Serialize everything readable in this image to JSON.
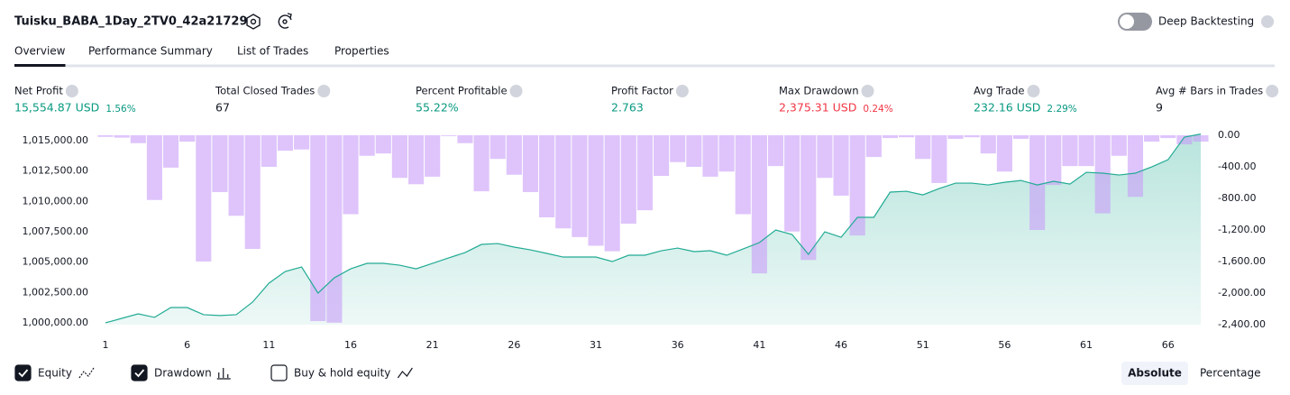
{
  "header": {
    "title": "Tuisku_BABA_1Day_2TV0_42a21729",
    "toggle_label": "Deep Backtesting",
    "toggle_on": false
  },
  "tabs": [
    {
      "label": "Overview",
      "active": true
    },
    {
      "label": "Performance Summary",
      "active": false
    },
    {
      "label": "List of Trades",
      "active": false
    },
    {
      "label": "Properties",
      "active": false
    }
  ],
  "metrics": [
    {
      "label": "Net Profit",
      "value": "15,554.87 USD",
      "change": "1.56%",
      "tone": "positive"
    },
    {
      "label": "Total Closed Trades",
      "value": "67",
      "tone": "neutral"
    },
    {
      "label": "Percent Profitable",
      "value": "55.22%",
      "tone": "positive"
    },
    {
      "label": "Profit Factor",
      "value": "2.763",
      "tone": "positive"
    },
    {
      "label": "Max Drawdown",
      "value": "2,375.31 USD",
      "change": "0.24%",
      "tone": "negative"
    },
    {
      "label": "Avg Trade",
      "value": "232.16 USD",
      "change": "2.29%",
      "tone": "positive"
    },
    {
      "label": "Avg # Bars in Trades",
      "value": "9",
      "tone": "neutral"
    }
  ],
  "chart_data": {
    "type": "equity-drawdown",
    "x": [
      1,
      2,
      3,
      4,
      5,
      6,
      7,
      8,
      9,
      10,
      11,
      12,
      13,
      14,
      15,
      16,
      17,
      18,
      19,
      20,
      21,
      22,
      23,
      24,
      25,
      26,
      27,
      28,
      29,
      30,
      31,
      32,
      33,
      34,
      35,
      36,
      37,
      38,
      39,
      40,
      41,
      42,
      43,
      44,
      45,
      46,
      47,
      48,
      49,
      50,
      51,
      52,
      53,
      54,
      55,
      56,
      57,
      58,
      59,
      60,
      61,
      62,
      63,
      64,
      65,
      66,
      67,
      68
    ],
    "xlim": [
      1,
      68
    ],
    "xticks": [
      1,
      6,
      11,
      16,
      21,
      26,
      31,
      36,
      41,
      46,
      51,
      56,
      61,
      66
    ],
    "ylim": [
      999850,
      1015600
    ],
    "yticks": [
      {
        "value": 1000000,
        "label": "1,000,000.00"
      },
      {
        "value": 1002500,
        "label": "1,002,500.00"
      },
      {
        "value": 1005000,
        "label": "1,005,000.00"
      },
      {
        "value": 1007500,
        "label": "1,007,500.00"
      },
      {
        "value": 1010000,
        "label": "1,010,000.00"
      },
      {
        "value": 1012500,
        "label": "1,012,500.00"
      },
      {
        "value": 1015000,
        "label": "1,015,000.00"
      }
    ],
    "y2lim": [
      -2400,
      23
    ],
    "y2ticks": [
      {
        "value": 0,
        "label": "0.00"
      },
      {
        "value": -400,
        "label": "-400.00"
      },
      {
        "value": -800,
        "label": "-800.00"
      },
      {
        "value": -1200,
        "label": "-1,200.00"
      },
      {
        "value": -1600,
        "label": "-1,600.00"
      },
      {
        "value": -2000,
        "label": "-2,000.00"
      },
      {
        "value": -2400,
        "label": "-2,400.00"
      }
    ],
    "grid": false,
    "series": [
      {
        "name": "Equity",
        "color": "#22ab94",
        "checked": true,
        "axis": "y",
        "values": [
          1000000,
          1000370,
          1000740,
          1000450,
          1001260,
          1001260,
          1000670,
          1000600,
          1000670,
          1001710,
          1003270,
          1004230,
          1004600,
          1002450,
          1003710,
          1004450,
          1004900,
          1004900,
          1004750,
          1004450,
          1004900,
          1005350,
          1005790,
          1006460,
          1006530,
          1006240,
          1006010,
          1005720,
          1005420,
          1005420,
          1005420,
          1005050,
          1005570,
          1005570,
          1005940,
          1006160,
          1005870,
          1005940,
          1005570,
          1006090,
          1006610,
          1007650,
          1007280,
          1005640,
          1007500,
          1007050,
          1008690,
          1008690,
          1010770,
          1010840,
          1010540,
          1011060,
          1011510,
          1011510,
          1011360,
          1011580,
          1011730,
          1011360,
          1011660,
          1011430,
          1012400,
          1012330,
          1012180,
          1012330,
          1012850,
          1013440,
          1015300,
          1015555
        ]
      },
      {
        "name": "Drawdown",
        "color": "#c89cf8",
        "checked": true,
        "axis": "y2",
        "values": [
          -20,
          -30,
          -100,
          -820,
          -410,
          -80,
          -1600,
          -720,
          -1020,
          -1440,
          -400,
          -195,
          -180,
          -2355,
          -2375,
          -1000,
          -260,
          -230,
          -540,
          -620,
          -525,
          -10,
          -100,
          -710,
          -300,
          -500,
          -720,
          -1040,
          -1180,
          -1290,
          -1400,
          -1470,
          -1120,
          -950,
          -515,
          -340,
          -400,
          -525,
          -460,
          -1000,
          -1750,
          -390,
          -1220,
          -1580,
          -540,
          -765,
          -1270,
          -275,
          -35,
          -25,
          -300,
          -605,
          -45,
          -25,
          -230,
          -460,
          -45,
          -1200,
          -630,
          -390,
          -390,
          -990,
          -260,
          -780,
          -80,
          -35,
          -115,
          -80
        ]
      }
    ],
    "options": [
      {
        "label": "Buy & hold equity",
        "checked": false
      }
    ],
    "scale_modes": [
      {
        "label": "Absolute",
        "active": true
      },
      {
        "label": "Percentage",
        "active": false
      }
    ]
  }
}
